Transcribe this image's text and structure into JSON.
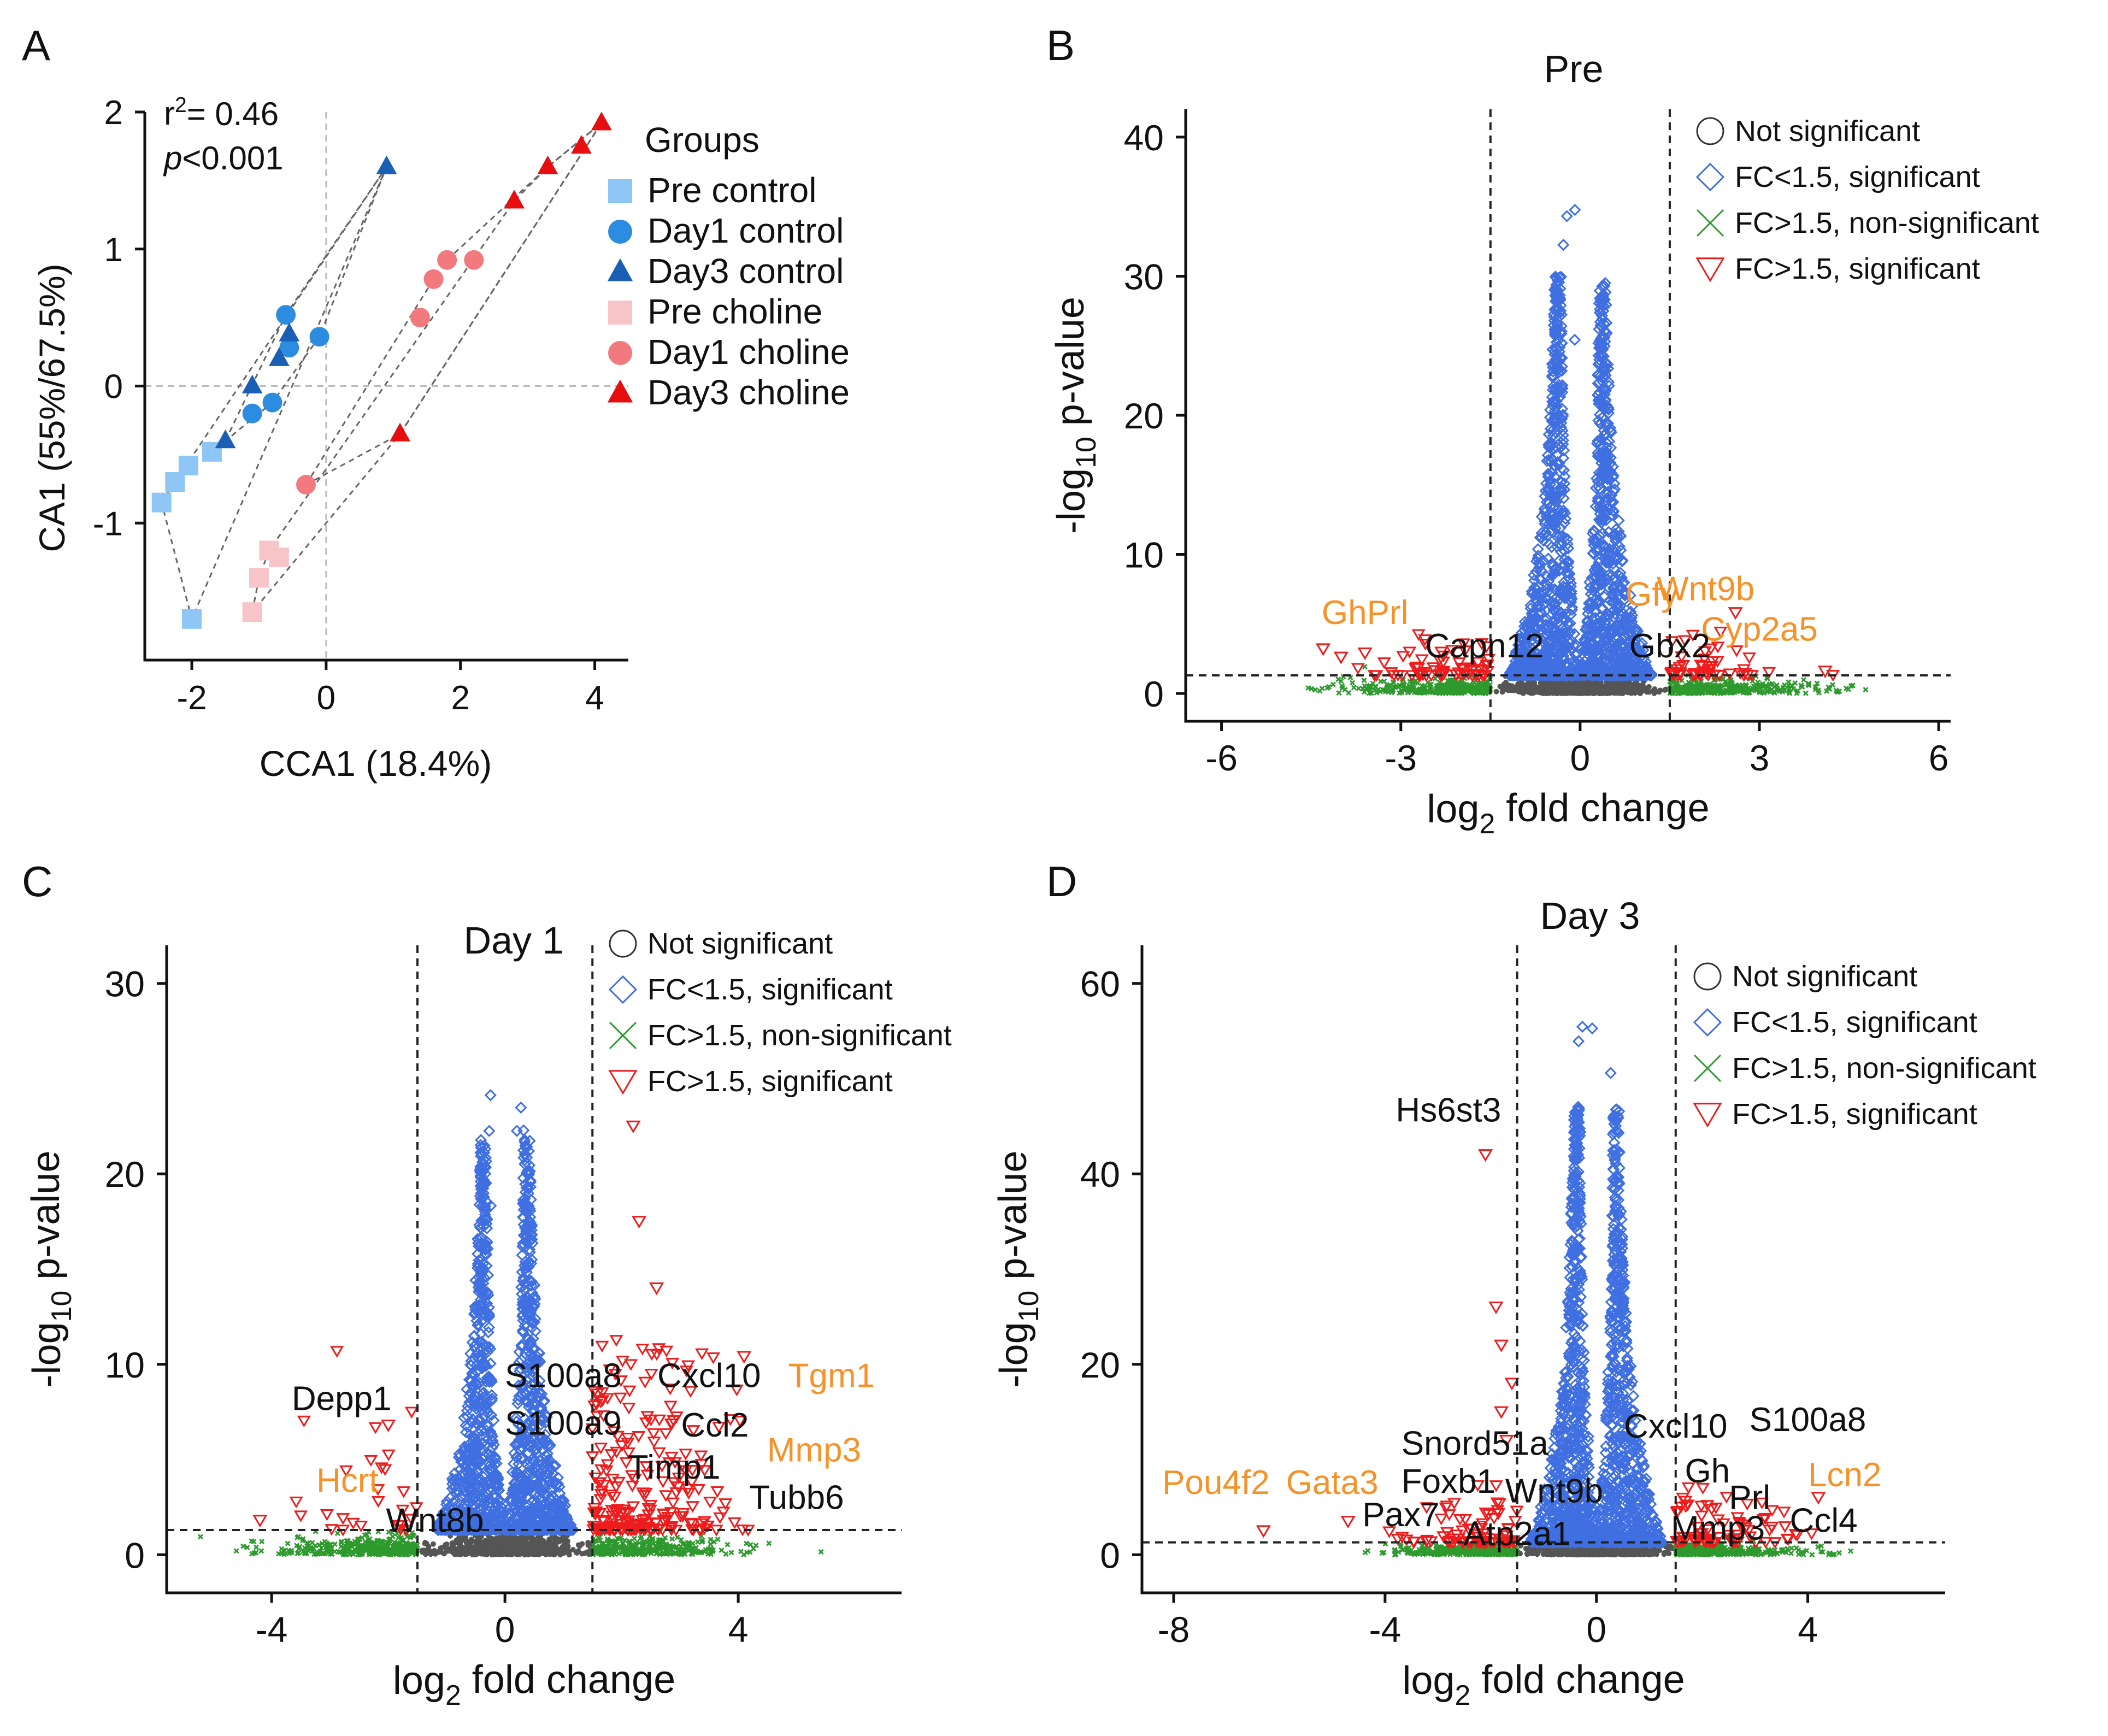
{
  "colors": {
    "pre_control": "#8ec6f5",
    "day1_control": "#2c8de0",
    "day3_control": "#1a5fb4",
    "pre_choline": "#f7c4c8",
    "day1_choline": "#f27a7f",
    "day3_choline": "#e60e0e",
    "not_sig": "#555555",
    "fc_lt_sig": "#3f6fe0",
    "fc_gt_nonsig": "#2e9a2e",
    "fc_gt_sig": "#ee1c1c",
    "orange_label": "#f5922a"
  },
  "panel_letters": [
    "A",
    "B",
    "C",
    "D"
  ],
  "legend_volcano": [
    {
      "label": "Not significant",
      "icon": "circle-icon"
    },
    {
      "label": "FC<1.5, significant",
      "icon": "diamond-icon"
    },
    {
      "label": "FC>1.5, non-significant",
      "icon": "cross-icon"
    },
    {
      "label": "FC>1.5, significant",
      "icon": "triangle-down-icon"
    }
  ],
  "chart_data": [
    {
      "panel": "A",
      "type": "scatter",
      "title": "",
      "xlabel": "CCA1 (18.4%)",
      "ylabel": "CA1 (55%/67.5%)",
      "xlim": [
        -2.7,
        4.5
      ],
      "ylim": [
        -2,
        2
      ],
      "xticks": [
        -2,
        0,
        2,
        4
      ],
      "yticks": [
        -1,
        0,
        1,
        2
      ],
      "annotation": {
        "r2_text": "r",
        "r2_sup": "2",
        "r2_value": "= 0.46",
        "p_italic": "p",
        "p_value": "<0.001"
      },
      "legend_title": "Groups",
      "series": [
        {
          "name": "Pre control",
          "marker": "square",
          "color": "#8ec6f5",
          "x": [
            -2.45,
            -2.25,
            -2.05,
            -1.7,
            -2.0
          ],
          "y": [
            -0.85,
            -0.7,
            -0.58,
            -0.48,
            -1.7
          ]
        },
        {
          "name": "Day1 control",
          "marker": "circle",
          "color": "#2c8de0",
          "x": [
            -1.1,
            -0.8,
            -0.55,
            -0.6,
            -0.1
          ],
          "y": [
            -0.2,
            -0.12,
            0.28,
            0.52,
            0.36
          ]
        },
        {
          "name": "Day3 control",
          "marker": "triangle",
          "color": "#1a5fb4",
          "x": [
            -1.5,
            -1.1,
            -0.7,
            -0.55,
            0.9
          ],
          "y": [
            -0.4,
            0.0,
            0.2,
            0.38,
            1.6
          ]
        },
        {
          "name": "Pre choline",
          "marker": "square",
          "color": "#f7c4c8",
          "x": [
            -1.1,
            -1.0,
            -0.85,
            -0.7
          ],
          "y": [
            -1.65,
            -1.4,
            -1.2,
            -1.25
          ]
        },
        {
          "name": "Day1 choline",
          "marker": "circle",
          "color": "#f27a7f",
          "x": [
            -0.3,
            1.4,
            1.6,
            1.8,
            2.2
          ],
          "y": [
            -0.72,
            0.5,
            0.78,
            0.92,
            0.92
          ]
        },
        {
          "name": "Day3 choline",
          "marker": "triangle",
          "color": "#e60e0e",
          "x": [
            1.1,
            2.8,
            3.3,
            3.8,
            4.1
          ],
          "y": [
            -0.35,
            1.35,
            1.6,
            1.75,
            1.92
          ]
        }
      ]
    },
    {
      "panel": "B",
      "type": "scatter",
      "title": "Pre",
      "xlabel_main": "log",
      "xlabel_sub": "2",
      "xlabel_rest": " fold change",
      "ylabel_main": "-log",
      "ylabel_sub": "10",
      "ylabel_rest": " p-value",
      "xlim": [
        -6.6,
        6.2
      ],
      "ylim": [
        -2,
        42
      ],
      "xticks": [
        -6,
        -3,
        0,
        3,
        6
      ],
      "yticks": [
        0,
        10,
        20,
        30,
        40
      ],
      "threshold_x": [
        -1.5,
        1.5
      ],
      "threshold_y": 1.3,
      "gene_labels": [
        {
          "text": "GhPrl",
          "x": -3.6,
          "y": 5.0,
          "color": "orange"
        },
        {
          "text": "Capn12",
          "x": -1.6,
          "y": 2.6,
          "color": "black"
        },
        {
          "text": "Gfy",
          "x": 1.2,
          "y": 6.3,
          "color": "orange"
        },
        {
          "text": "Wnt9b",
          "x": 2.1,
          "y": 6.7,
          "color": "orange"
        },
        {
          "text": "Cyp2a5",
          "x": 3.0,
          "y": 3.8,
          "color": "orange"
        },
        {
          "text": "Gbx2",
          "x": 1.5,
          "y": 2.6,
          "color": "black"
        }
      ],
      "n_points_blue": 1600,
      "n_points_red": 120,
      "y_max_point": 35
    },
    {
      "panel": "C",
      "type": "scatter",
      "title": "Day 1",
      "xlabel_main": "log",
      "xlabel_sub": "2",
      "xlabel_rest": " fold change",
      "ylabel_main": "-log",
      "ylabel_sub": "10",
      "ylabel_rest": " p-value",
      "xlim": [
        -5.8,
        6.8
      ],
      "ylim": [
        -2,
        32
      ],
      "xticks": [
        -4,
        0,
        4
      ],
      "yticks": [
        0,
        10,
        20,
        30
      ],
      "threshold_x": [
        -1.5,
        1.5
      ],
      "threshold_y": 1.3,
      "gene_labels": [
        {
          "text": "Depp1",
          "x": -2.8,
          "y": 7.6,
          "color": "black"
        },
        {
          "text": "Hcrt",
          "x": -2.7,
          "y": 3.3,
          "color": "orange"
        },
        {
          "text": "Wnt8b",
          "x": -1.2,
          "y": 1.2,
          "color": "black"
        },
        {
          "text": "S100a8",
          "x": 1.0,
          "y": 8.8,
          "color": "black"
        },
        {
          "text": "S100a9",
          "x": 1.0,
          "y": 6.3,
          "color": "black"
        },
        {
          "text": "Cxcl10",
          "x": 3.5,
          "y": 8.8,
          "color": "black"
        },
        {
          "text": "Tgm1",
          "x": 5.6,
          "y": 8.8,
          "color": "orange"
        },
        {
          "text": "Ccl2",
          "x": 3.6,
          "y": 6.2,
          "color": "black"
        },
        {
          "text": "Mmp3",
          "x": 5.3,
          "y": 4.9,
          "color": "orange"
        },
        {
          "text": "Timp1",
          "x": 2.9,
          "y": 4.0,
          "color": "black"
        },
        {
          "text": "Tubb6",
          "x": 5.0,
          "y": 2.4,
          "color": "black"
        }
      ],
      "n_points_blue": 1400,
      "n_points_red": 260,
      "y_max_point": 25
    },
    {
      "panel": "D",
      "type": "scatter",
      "title": "Day 3",
      "xlabel_main": "log",
      "xlabel_sub": "2",
      "xlabel_rest": " fold change",
      "ylabel_main": "-log",
      "ylabel_sub": "10",
      "ylabel_rest": " p-value",
      "xlim": [
        -8.6,
        6.6
      ],
      "ylim": [
        -4,
        64
      ],
      "xticks": [
        -8,
        -4,
        0,
        4
      ],
      "yticks": [
        0,
        20,
        40,
        60
      ],
      "threshold_x": [
        -1.5,
        1.5
      ],
      "threshold_y": 1.3,
      "gene_labels": [
        {
          "text": "Hs6st3",
          "x": -2.8,
          "y": 45.5,
          "color": "black"
        },
        {
          "text": "Snord51a",
          "x": -2.3,
          "y": 10.5,
          "color": "black"
        },
        {
          "text": "Foxb1",
          "x": -2.8,
          "y": 6.5,
          "color": "black"
        },
        {
          "text": "Pax7",
          "x": -3.7,
          "y": 3.0,
          "color": "black"
        },
        {
          "text": "Wnt9b",
          "x": -0.8,
          "y": 5.5,
          "color": "black"
        },
        {
          "text": "Atp2a1",
          "x": -1.5,
          "y": 1.0,
          "color": "black"
        },
        {
          "text": "Pou4f2",
          "x": -7.2,
          "y": 6.4,
          "color": "orange"
        },
        {
          "text": "Gata3",
          "x": -5.0,
          "y": 6.4,
          "color": "orange"
        },
        {
          "text": "Cxcl10",
          "x": 1.5,
          "y": 12.3,
          "color": "black"
        },
        {
          "text": "S100a8",
          "x": 4.0,
          "y": 13.0,
          "color": "black"
        },
        {
          "text": "Gh",
          "x": 2.1,
          "y": 7.6,
          "color": "black"
        },
        {
          "text": "Prl",
          "x": 2.9,
          "y": 4.8,
          "color": "black"
        },
        {
          "text": "Lcn2",
          "x": 4.7,
          "y": 7.2,
          "color": "orange"
        },
        {
          "text": "Ccl4",
          "x": 4.3,
          "y": 2.4,
          "color": "black"
        },
        {
          "text": "Mmp3",
          "x": 2.3,
          "y": 1.6,
          "color": "black"
        }
      ],
      "n_points_blue": 1500,
      "n_points_red": 160,
      "y_max_point": 56
    }
  ]
}
